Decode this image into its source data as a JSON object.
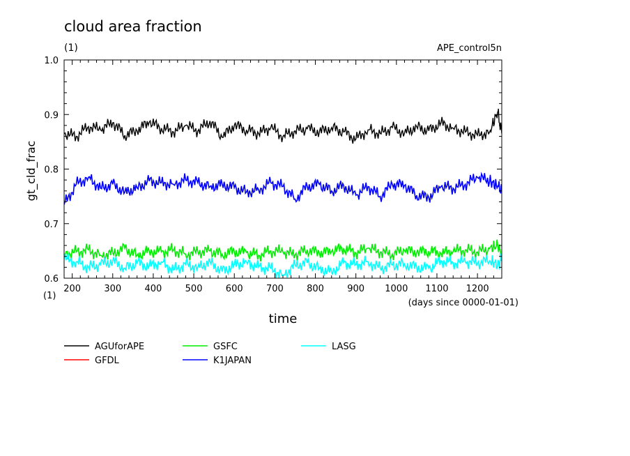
{
  "chart_data": {
    "type": "line",
    "title": "cloud area fraction",
    "title_unit": "(1)",
    "experiment": "APE_control5n",
    "xlabel": "time",
    "x_unit": "(days since 0000-01-01)",
    "ylabel": "gt_cld_frac",
    "y_unit": "(1)",
    "xlim": [
      180,
      1260
    ],
    "ylim": [
      0.6,
      1.0
    ],
    "x_ticks": [
      200,
      300,
      400,
      500,
      600,
      700,
      800,
      900,
      1000,
      1100,
      1200
    ],
    "x_tick_labels": [
      "200",
      "300",
      "400",
      "500",
      "600",
      "700",
      "800",
      "900",
      "1000",
      "1100",
      "1200"
    ],
    "y_ticks": [
      0.6,
      0.7,
      0.8,
      0.9,
      1.0
    ],
    "y_tick_labels": [
      "0.6",
      "0.7",
      "0.8",
      "0.9",
      "1.0"
    ],
    "grid": false,
    "legend_position": "below",
    "series": [
      {
        "name": "AGUforAPE",
        "color": "#000000",
        "x": [
          180,
          210,
          240,
          270,
          300,
          330,
          360,
          390,
          420,
          450,
          480,
          510,
          540,
          570,
          600,
          630,
          660,
          690,
          720,
          750,
          780,
          810,
          840,
          870,
          900,
          930,
          960,
          990,
          1020,
          1050,
          1080,
          1110,
          1140,
          1170,
          1200,
          1230,
          1250,
          1260
        ],
        "y": [
          0.865,
          0.86,
          0.878,
          0.872,
          0.885,
          0.862,
          0.87,
          0.886,
          0.875,
          0.868,
          0.88,
          0.87,
          0.888,
          0.858,
          0.88,
          0.872,
          0.865,
          0.876,
          0.86,
          0.87,
          0.874,
          0.868,
          0.876,
          0.868,
          0.855,
          0.872,
          0.865,
          0.876,
          0.866,
          0.878,
          0.87,
          0.885,
          0.875,
          0.868,
          0.862,
          0.868,
          0.905,
          0.865
        ]
      },
      {
        "name": "GFDL",
        "color": "#ff0000",
        "x": [],
        "y": []
      },
      {
        "name": "GSFC",
        "color": "#00ee00",
        "x": [
          180,
          210,
          240,
          270,
          300,
          330,
          360,
          390,
          420,
          450,
          480,
          510,
          540,
          570,
          600,
          630,
          660,
          690,
          720,
          750,
          780,
          810,
          840,
          870,
          900,
          930,
          960,
          990,
          1020,
          1050,
          1080,
          1110,
          1140,
          1170,
          1200,
          1230,
          1250,
          1260
        ],
        "y": [
          0.645,
          0.648,
          0.652,
          0.642,
          0.646,
          0.655,
          0.642,
          0.65,
          0.648,
          0.652,
          0.644,
          0.648,
          0.65,
          0.644,
          0.649,
          0.647,
          0.642,
          0.65,
          0.648,
          0.643,
          0.652,
          0.646,
          0.649,
          0.655,
          0.646,
          0.655,
          0.648,
          0.644,
          0.651,
          0.647,
          0.65,
          0.645,
          0.649,
          0.652,
          0.648,
          0.654,
          0.66,
          0.64
        ]
      },
      {
        "name": "K1JAPAN",
        "color": "#0000ff",
        "x": [
          180,
          210,
          240,
          270,
          300,
          330,
          360,
          390,
          420,
          450,
          480,
          510,
          540,
          570,
          600,
          630,
          660,
          690,
          720,
          750,
          780,
          810,
          840,
          870,
          900,
          930,
          960,
          990,
          1020,
          1050,
          1080,
          1110,
          1140,
          1170,
          1200,
          1230,
          1250,
          1260
        ],
        "y": [
          0.735,
          0.772,
          0.785,
          0.765,
          0.772,
          0.758,
          0.766,
          0.778,
          0.775,
          0.772,
          0.78,
          0.775,
          0.768,
          0.772,
          0.766,
          0.758,
          0.762,
          0.775,
          0.768,
          0.745,
          0.768,
          0.772,
          0.76,
          0.77,
          0.752,
          0.768,
          0.75,
          0.772,
          0.77,
          0.752,
          0.748,
          0.768,
          0.765,
          0.772,
          0.785,
          0.778,
          0.768,
          0.762
        ]
      },
      {
        "name": "LASG",
        "color": "#00ffff",
        "x": [
          180,
          210,
          240,
          270,
          300,
          330,
          360,
          390,
          420,
          450,
          480,
          510,
          540,
          570,
          600,
          630,
          660,
          690,
          720,
          750,
          780,
          810,
          840,
          870,
          900,
          930,
          960,
          990,
          1020,
          1050,
          1080,
          1110,
          1140,
          1170,
          1200,
          1230,
          1250,
          1260
        ],
        "y": [
          0.635,
          0.63,
          0.62,
          0.625,
          0.632,
          0.618,
          0.628,
          0.622,
          0.63,
          0.615,
          0.625,
          0.62,
          0.63,
          0.612,
          0.625,
          0.63,
          0.62,
          0.618,
          0.605,
          0.624,
          0.628,
          0.618,
          0.612,
          0.628,
          0.625,
          0.63,
          0.618,
          0.624,
          0.626,
          0.62,
          0.618,
          0.632,
          0.628,
          0.63,
          0.628,
          0.632,
          0.625,
          0.635
        ]
      }
    ]
  }
}
